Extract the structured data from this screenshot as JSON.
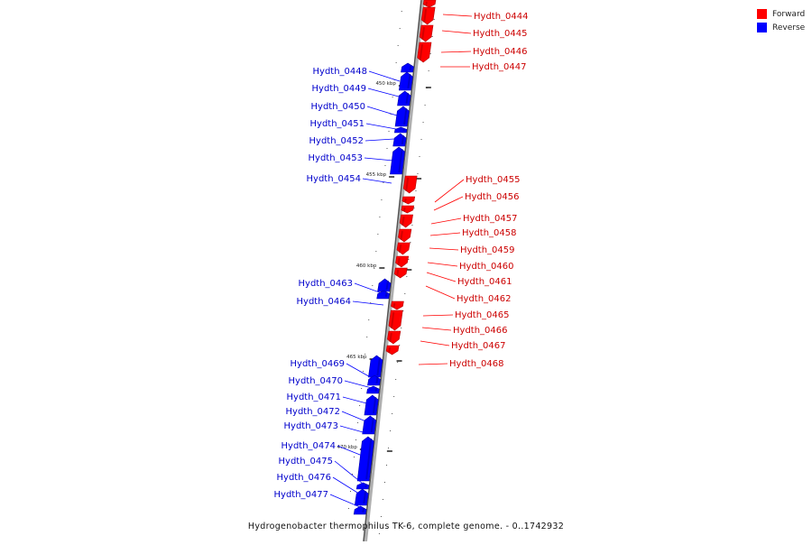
{
  "legend": {
    "forward_label": "Forward",
    "reverse_label": "Reverse",
    "forward_color": "#ff0000",
    "reverse_color": "#0000ff"
  },
  "caption": "Hydrogenobacter thermophilus TK-6, complete genome. - 0..1742932",
  "axis": {
    "tick_unit": "kbp",
    "major_ticks": [
      450,
      455,
      460,
      465,
      470
    ],
    "labels": [
      "450 kbp",
      "455 kbp",
      "460 kbp",
      "465 kbp",
      "470 kbp"
    ]
  },
  "genes": [
    {
      "name": "Hydth_0444",
      "strand": "forward"
    },
    {
      "name": "Hydth_0445",
      "strand": "forward"
    },
    {
      "name": "Hydth_0446",
      "strand": "forward"
    },
    {
      "name": "Hydth_0447",
      "strand": "forward"
    },
    {
      "name": "Hydth_0448",
      "strand": "reverse"
    },
    {
      "name": "Hydth_0449",
      "strand": "reverse"
    },
    {
      "name": "Hydth_0450",
      "strand": "reverse"
    },
    {
      "name": "Hydth_0451",
      "strand": "reverse"
    },
    {
      "name": "Hydth_0452",
      "strand": "reverse"
    },
    {
      "name": "Hydth_0453",
      "strand": "reverse"
    },
    {
      "name": "Hydth_0454",
      "strand": "reverse"
    },
    {
      "name": "Hydth_0455",
      "strand": "forward"
    },
    {
      "name": "Hydth_0456",
      "strand": "forward"
    },
    {
      "name": "Hydth_0457",
      "strand": "forward"
    },
    {
      "name": "Hydth_0458",
      "strand": "forward"
    },
    {
      "name": "Hydth_0459",
      "strand": "forward"
    },
    {
      "name": "Hydth_0460",
      "strand": "forward"
    },
    {
      "name": "Hydth_0461",
      "strand": "forward"
    },
    {
      "name": "Hydth_0462",
      "strand": "forward"
    },
    {
      "name": "Hydth_0463",
      "strand": "reverse"
    },
    {
      "name": "Hydth_0464",
      "strand": "reverse"
    },
    {
      "name": "Hydth_0465",
      "strand": "forward"
    },
    {
      "name": "Hydth_0466",
      "strand": "forward"
    },
    {
      "name": "Hydth_0467",
      "strand": "forward"
    },
    {
      "name": "Hydth_0468",
      "strand": "forward"
    },
    {
      "name": "Hydth_0469",
      "strand": "reverse"
    },
    {
      "name": "Hydth_0470",
      "strand": "reverse"
    },
    {
      "name": "Hydth_0471",
      "strand": "reverse"
    },
    {
      "name": "Hydth_0472",
      "strand": "reverse"
    },
    {
      "name": "Hydth_0473",
      "strand": "reverse"
    },
    {
      "name": "Hydth_0474",
      "strand": "reverse"
    },
    {
      "name": "Hydth_0475",
      "strand": "reverse"
    },
    {
      "name": "Hydth_0476",
      "strand": "reverse"
    },
    {
      "name": "Hydth_0477",
      "strand": "reverse"
    }
  ]
}
